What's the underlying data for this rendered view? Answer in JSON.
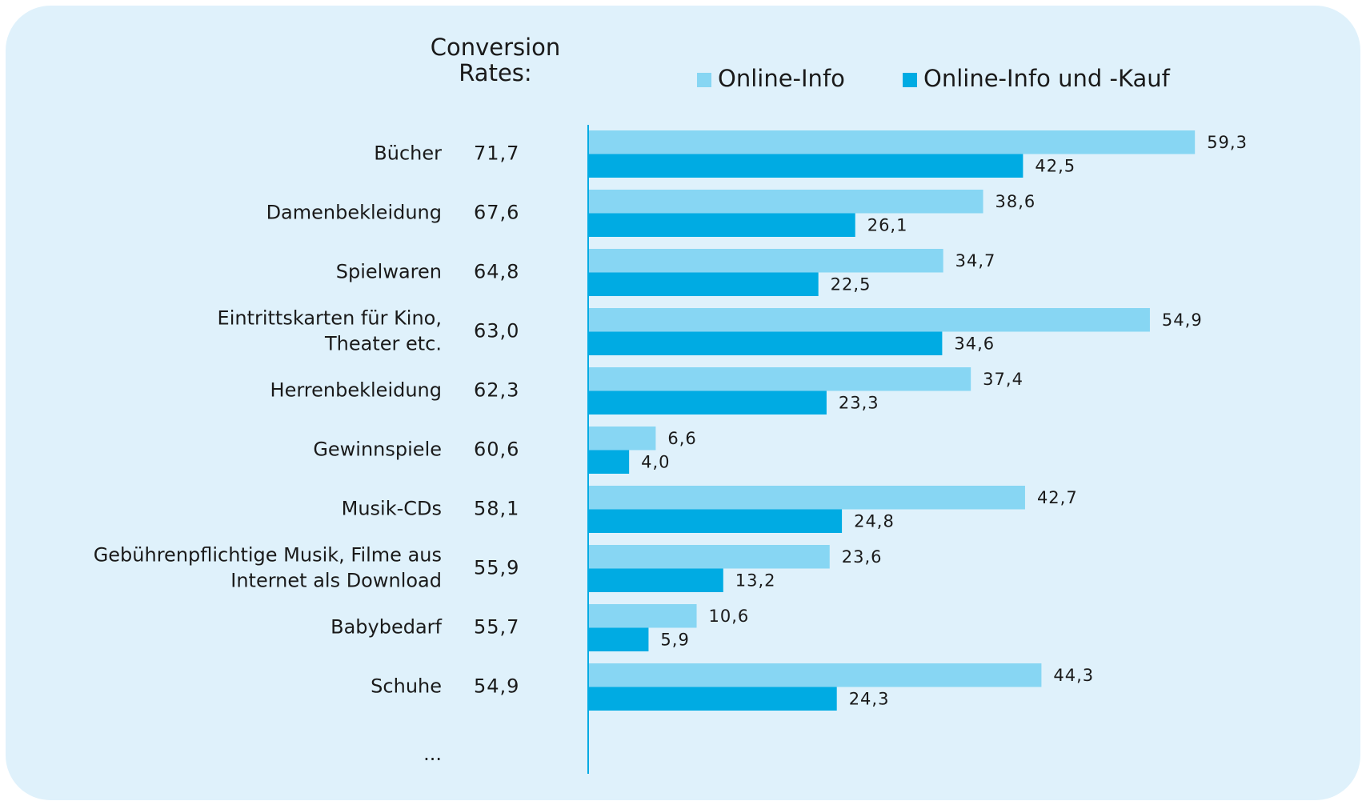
{
  "chart_data": {
    "type": "bar",
    "orientation": "horizontal",
    "title": "Conversion\nRates:",
    "categories": [
      "Bücher",
      "Damenbekleidung",
      "Spielwaren",
      "Eintrittskarten für Kino,\nTheater etc.",
      "Herrenbekleidung",
      "Gewinnspiele",
      "Musik-CDs",
      "Gebührenpflichtige Musik, Filme aus\nInternet als Download",
      "Babybedarf",
      "Schuhe"
    ],
    "categories_more": "...",
    "conversion_rates": {
      "values": [
        71.7,
        67.6,
        64.8,
        63.0,
        62.3,
        60.6,
        58.1,
        55.9,
        55.7,
        54.9
      ],
      "value_labels": [
        "71,7",
        "67,6",
        "64,8",
        "63,0",
        "62,3",
        "60,6",
        "58,1",
        "55,9",
        "55,7",
        "54,9"
      ]
    },
    "series": [
      {
        "name": "Online-Info",
        "color": "#87d6f3",
        "values": [
          59.3,
          38.6,
          34.7,
          54.9,
          37.4,
          6.6,
          42.7,
          23.6,
          10.6,
          44.3
        ],
        "value_labels": [
          "59,3",
          "38,6",
          "34,7",
          "54,9",
          "37,4",
          "6,6",
          "42,7",
          "23,6",
          "10,6",
          "44,3"
        ]
      },
      {
        "name": "Online-Info und -Kauf",
        "color": "#00abe3",
        "values": [
          42.5,
          26.1,
          22.5,
          34.6,
          23.3,
          4.0,
          24.8,
          13.2,
          5.9,
          24.3
        ],
        "value_labels": [
          "42,5",
          "26,1",
          "22,5",
          "34,6",
          "23,3",
          "4,0",
          "24,8",
          "13,2",
          "5,9",
          "24,3"
        ]
      }
    ],
    "xlim": [
      0,
      70
    ],
    "legend": "top"
  }
}
